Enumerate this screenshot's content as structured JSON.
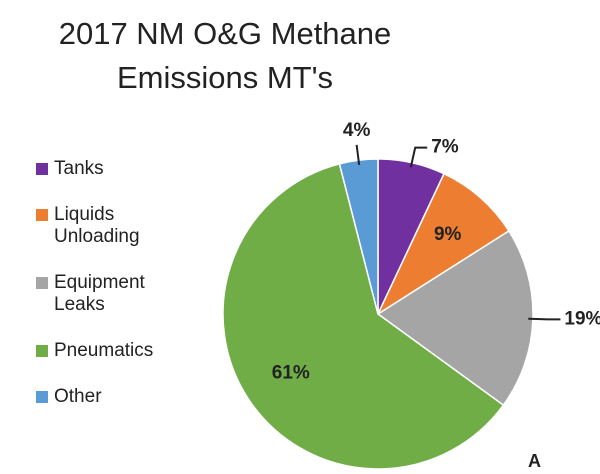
{
  "chart_data": {
    "type": "pie",
    "title": "2017 NM O&G Methane Emissions MT's",
    "categories": [
      "Tanks",
      "Liquids Unloading",
      "Equipment Leaks",
      "Pneumatics",
      "Other"
    ],
    "values": [
      7,
      9,
      19,
      61,
      4
    ],
    "value_labels": [
      "7%",
      "9%",
      "19%",
      "61%",
      "4%"
    ],
    "colors": [
      "#7030a0",
      "#ed7d31",
      "#a5a5a5",
      "#70ad47",
      "#5b9bd5"
    ],
    "legend": "left",
    "annotation": "A"
  }
}
